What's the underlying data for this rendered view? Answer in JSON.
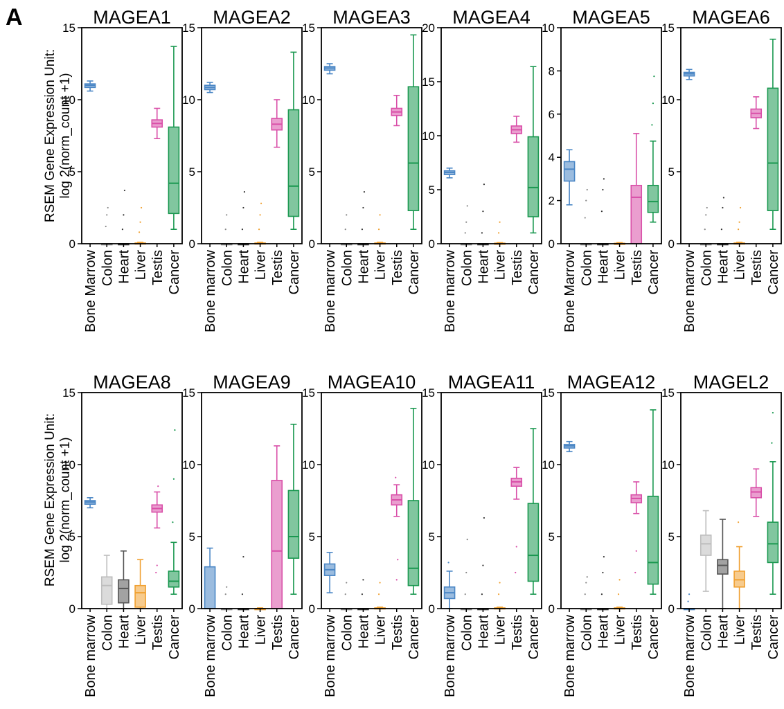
{
  "panel_letter": "A",
  "ylabel_line1": "RSEM Gene Expression Unit:",
  "ylabel_line2": "log 2(norm_count +1)",
  "chart_data": [
    {
      "type": "box",
      "title": "MAGEA1",
      "ylim": [
        0,
        15
      ],
      "yticks": [
        0,
        5,
        10,
        15
      ],
      "categories": [
        "Bone Marrow",
        "Colon",
        "Heart",
        "Liver",
        "Testis",
        "Cancer"
      ],
      "boxes": [
        {
          "min": 10.6,
          "q1": 10.85,
          "median": 11.0,
          "q3": 11.1,
          "max": 11.3,
          "outliers": [],
          "color": "#4a86c5"
        },
        {
          "min": 0,
          "q1": 0,
          "median": 0,
          "q3": 0,
          "max": 0,
          "outliers": [
            1.2,
            2.0,
            2.5
          ],
          "color": "#888888"
        },
        {
          "min": 0,
          "q1": 0,
          "median": 0,
          "q3": 0,
          "max": 0,
          "outliers": [
            1.0,
            2.0,
            3.7
          ],
          "color": "#333333"
        },
        {
          "min": 0,
          "q1": 0,
          "median": 0,
          "q3": 0.05,
          "max": 0.1,
          "outliers": [
            0.8,
            1.5,
            2.5
          ],
          "color": "#f0a030"
        },
        {
          "min": 7.3,
          "q1": 8.1,
          "median": 8.35,
          "q3": 8.6,
          "max": 9.4,
          "outliers": [],
          "color": "#d94fa8"
        },
        {
          "min": 1.0,
          "q1": 2.1,
          "median": 4.2,
          "q3": 8.1,
          "max": 13.7,
          "outliers": [],
          "color": "#1a9850"
        }
      ]
    },
    {
      "type": "box",
      "title": "MAGEA2",
      "ylim": [
        0,
        15
      ],
      "yticks": [
        0,
        5,
        10,
        15
      ],
      "categories": [
        "Bone marrow",
        "Colon",
        "Heart",
        "Liver",
        "Testis",
        "Cancer"
      ],
      "boxes": [
        {
          "min": 10.5,
          "q1": 10.7,
          "median": 10.85,
          "q3": 11.0,
          "max": 11.2,
          "outliers": [],
          "color": "#4a86c5"
        },
        {
          "min": 0,
          "q1": 0,
          "median": 0,
          "q3": 0,
          "max": 0,
          "outliers": [
            1.0,
            2.0
          ],
          "color": "#888888"
        },
        {
          "min": 0,
          "q1": 0,
          "median": 0,
          "q3": 0,
          "max": 0,
          "outliers": [
            1.0,
            2.5,
            3.6
          ],
          "color": "#333333"
        },
        {
          "min": 0,
          "q1": 0,
          "median": 0,
          "q3": 0.05,
          "max": 0.1,
          "outliers": [
            1.0,
            2.0,
            2.8
          ],
          "color": "#f0a030"
        },
        {
          "min": 6.7,
          "q1": 7.9,
          "median": 8.3,
          "q3": 8.7,
          "max": 10.0,
          "outliers": [],
          "color": "#d94fa8"
        },
        {
          "min": 1.0,
          "q1": 1.9,
          "median": 4.0,
          "q3": 9.3,
          "max": 13.3,
          "outliers": [],
          "color": "#1a9850"
        }
      ]
    },
    {
      "type": "box",
      "title": "MAGEA3",
      "ylim": [
        0,
        15
      ],
      "yticks": [
        0,
        5,
        10,
        15
      ],
      "categories": [
        "Bone marrow",
        "Colon",
        "Heart",
        "Liver",
        "Testis",
        "Cancer"
      ],
      "boxes": [
        {
          "min": 11.8,
          "q1": 12.05,
          "median": 12.2,
          "q3": 12.3,
          "max": 12.5,
          "outliers": [],
          "color": "#4a86c5"
        },
        {
          "min": 0,
          "q1": 0,
          "median": 0,
          "q3": 0,
          "max": 0,
          "outliers": [
            1.0,
            2.0
          ],
          "color": "#888888"
        },
        {
          "min": 0,
          "q1": 0,
          "median": 0,
          "q3": 0,
          "max": 0,
          "outliers": [
            1.0,
            2.5,
            3.6
          ],
          "color": "#333333"
        },
        {
          "min": 0,
          "q1": 0,
          "median": 0,
          "q3": 0.05,
          "max": 0.1,
          "outliers": [
            1.0,
            2.0
          ],
          "color": "#f0a030"
        },
        {
          "min": 8.2,
          "q1": 8.9,
          "median": 9.15,
          "q3": 9.4,
          "max": 10.3,
          "outliers": [],
          "color": "#d94fa8"
        },
        {
          "min": 1.0,
          "q1": 2.3,
          "median": 5.6,
          "q3": 10.9,
          "max": 14.5,
          "outliers": [],
          "color": "#1a9850"
        }
      ]
    },
    {
      "type": "box",
      "title": "MAGEA4",
      "ylim": [
        0,
        20
      ],
      "yticks": [
        0,
        5,
        10,
        15,
        20
      ],
      "categories": [
        "Bone marrow",
        "Colon",
        "Heart",
        "Liver",
        "Testis",
        "Cancer"
      ],
      "boxes": [
        {
          "min": 6.1,
          "q1": 6.4,
          "median": 6.6,
          "q3": 6.75,
          "max": 7.0,
          "outliers": [],
          "color": "#4a86c5"
        },
        {
          "min": 0,
          "q1": 0,
          "median": 0,
          "q3": 0,
          "max": 0,
          "outliers": [
            1.0,
            2.0,
            3.5
          ],
          "color": "#888888"
        },
        {
          "min": 0,
          "q1": 0,
          "median": 0,
          "q3": 0,
          "max": 0,
          "outliers": [
            1.0,
            3.0,
            5.5
          ],
          "color": "#333333"
        },
        {
          "min": 0,
          "q1": 0,
          "median": 0,
          "q3": 0.05,
          "max": 0.1,
          "outliers": [
            1.0,
            2.0
          ],
          "color": "#f0a030"
        },
        {
          "min": 9.4,
          "q1": 10.2,
          "median": 10.55,
          "q3": 10.9,
          "max": 11.8,
          "outliers": [],
          "color": "#d94fa8"
        },
        {
          "min": 1.0,
          "q1": 2.5,
          "median": 5.2,
          "q3": 9.9,
          "max": 16.4,
          "outliers": [],
          "color": "#1a9850"
        }
      ]
    },
    {
      "type": "box",
      "title": "MAGEA5",
      "ylim": [
        0,
        10
      ],
      "yticks": [
        0,
        2,
        4,
        6,
        8,
        10
      ],
      "categories": [
        "Bone Marrow",
        "Colon",
        "Heart",
        "Liver",
        "Testis",
        "Cancer"
      ],
      "boxes": [
        {
          "min": 1.8,
          "q1": 2.9,
          "median": 3.45,
          "q3": 3.8,
          "max": 4.35,
          "outliers": [],
          "color": "#4a86c5"
        },
        {
          "min": 0,
          "q1": 0,
          "median": 0,
          "q3": 0,
          "max": 0,
          "outliers": [
            1.2,
            2.0,
            2.5
          ],
          "color": "#888888"
        },
        {
          "min": 0,
          "q1": 0,
          "median": 0,
          "q3": 0,
          "max": 0,
          "outliers": [
            1.5,
            2.5,
            3.0
          ],
          "color": "#333333"
        },
        {
          "min": 0,
          "q1": 0,
          "median": 0,
          "q3": 0.02,
          "max": 0.05,
          "outliers": [],
          "color": "#f0a030"
        },
        {
          "min": 0,
          "q1": 0,
          "median": 2.15,
          "q3": 2.7,
          "max": 5.1,
          "outliers": [],
          "color": "#d94fa8"
        },
        {
          "min": 1.0,
          "q1": 1.45,
          "median": 1.95,
          "q3": 2.7,
          "max": 4.75,
          "outliers": [
            5.5,
            6.5,
            7.75
          ],
          "color": "#1a9850"
        }
      ]
    },
    {
      "type": "box",
      "title": "MAGEA6",
      "ylim": [
        0,
        15
      ],
      "yticks": [
        0,
        5,
        10,
        15
      ],
      "categories": [
        "Bone marrow",
        "Colon",
        "Heart",
        "Liver",
        "Testis",
        "Cancer"
      ],
      "boxes": [
        {
          "min": 11.4,
          "q1": 11.65,
          "median": 11.8,
          "q3": 11.9,
          "max": 12.1,
          "outliers": [],
          "color": "#4a86c5"
        },
        {
          "min": 0,
          "q1": 0,
          "median": 0,
          "q3": 0,
          "max": 0,
          "outliers": [
            1.0,
            2.0,
            2.5
          ],
          "color": "#888888"
        },
        {
          "min": 0,
          "q1": 0,
          "median": 0,
          "q3": 0,
          "max": 0,
          "outliers": [
            1.0,
            2.5,
            3.2
          ],
          "color": "#333333"
        },
        {
          "min": 0,
          "q1": 0,
          "median": 0,
          "q3": 0.05,
          "max": 0.1,
          "outliers": [
            1.0,
            1.5,
            2.5
          ],
          "color": "#f0a030"
        },
        {
          "min": 8.0,
          "q1": 8.75,
          "median": 9.05,
          "q3": 9.35,
          "max": 10.2,
          "outliers": [],
          "color": "#d94fa8"
        },
        {
          "min": 1.0,
          "q1": 2.3,
          "median": 5.6,
          "q3": 10.8,
          "max": 14.2,
          "outliers": [],
          "color": "#1a9850"
        }
      ]
    },
    {
      "type": "box",
      "title": "MAGEA8",
      "ylim": [
        0,
        15
      ],
      "yticks": [
        0,
        5,
        10,
        15
      ],
      "categories": [
        "Bone marrow",
        "Colon",
        "Heart",
        "Liver",
        "Testis",
        "Cancer"
      ],
      "boxes": [
        {
          "min": 7.0,
          "q1": 7.25,
          "median": 7.4,
          "q3": 7.5,
          "max": 7.7,
          "outliers": [],
          "color": "#4a86c5"
        },
        {
          "min": 0,
          "q1": 0.3,
          "median": 1.6,
          "q3": 2.2,
          "max": 3.7,
          "outliers": [],
          "color": "#bdbdbd"
        },
        {
          "min": 0,
          "q1": 0.4,
          "median": 1.4,
          "q3": 2.0,
          "max": 4.0,
          "outliers": [],
          "color": "#555555"
        },
        {
          "min": 0,
          "q1": 0.1,
          "median": 1.1,
          "q3": 1.6,
          "max": 3.4,
          "outliers": [],
          "color": "#f0a030"
        },
        {
          "min": 5.6,
          "q1": 6.7,
          "median": 6.95,
          "q3": 7.2,
          "max": 8.1,
          "outliers": [
            2.5,
            3.0,
            8.5
          ],
          "color": "#d94fa8"
        },
        {
          "min": 1.0,
          "q1": 1.5,
          "median": 1.9,
          "q3": 2.6,
          "max": 4.6,
          "outliers": [
            6.0,
            9.0,
            12.4
          ],
          "color": "#1a9850"
        }
      ]
    },
    {
      "type": "box",
      "title": "MAGEA9",
      "ylim": [
        0,
        15
      ],
      "yticks": [
        0,
        5,
        10,
        15
      ],
      "categories": [
        "Bone marrow",
        "Colon",
        "Heart",
        "Liver",
        "Testis",
        "Cancer"
      ],
      "boxes": [
        {
          "min": 0,
          "q1": 0,
          "median": 0,
          "q3": 2.9,
          "max": 4.2,
          "outliers": [],
          "color": "#4a86c5"
        },
        {
          "min": 0,
          "q1": 0,
          "median": 0,
          "q3": 0,
          "max": 0,
          "outliers": [
            1.0,
            1.5
          ],
          "color": "#888888"
        },
        {
          "min": 0,
          "q1": 0,
          "median": 0,
          "q3": 0,
          "max": 0,
          "outliers": [
            1.0,
            3.6
          ],
          "color": "#333333"
        },
        {
          "min": 0,
          "q1": 0,
          "median": 0,
          "q3": 0,
          "max": 0.05,
          "outliers": [],
          "color": "#f0a030"
        },
        {
          "min": 0,
          "q1": 0,
          "median": 4.0,
          "q3": 8.9,
          "max": 11.3,
          "outliers": [],
          "color": "#d94fa8"
        },
        {
          "min": 1.0,
          "q1": 3.5,
          "median": 5.0,
          "q3": 8.2,
          "max": 12.8,
          "outliers": [],
          "color": "#1a9850"
        }
      ]
    },
    {
      "type": "box",
      "title": "MAGEA10",
      "ylim": [
        0,
        15
      ],
      "yticks": [
        0,
        5,
        10,
        15
      ],
      "categories": [
        "Bone marrow",
        "Colon",
        "Heart",
        "Liver",
        "Testis",
        "Cancer"
      ],
      "boxes": [
        {
          "min": 1.1,
          "q1": 2.3,
          "median": 2.7,
          "q3": 3.1,
          "max": 3.9,
          "outliers": [],
          "color": "#4a86c5"
        },
        {
          "min": 0,
          "q1": 0,
          "median": 0,
          "q3": 0,
          "max": 0,
          "outliers": [
            1.0,
            1.8
          ],
          "color": "#888888"
        },
        {
          "min": 0,
          "q1": 0,
          "median": 0,
          "q3": 0,
          "max": 0,
          "outliers": [
            1.0,
            2.0
          ],
          "color": "#333333"
        },
        {
          "min": 0,
          "q1": 0,
          "median": 0,
          "q3": 0.05,
          "max": 0.1,
          "outliers": [
            1.0,
            1.8
          ],
          "color": "#f0a030"
        },
        {
          "min": 6.4,
          "q1": 7.2,
          "median": 7.55,
          "q3": 7.9,
          "max": 8.6,
          "outliers": [
            9.1,
            2.0,
            3.4
          ],
          "color": "#d94fa8"
        },
        {
          "min": 1.0,
          "q1": 1.6,
          "median": 2.8,
          "q3": 7.5,
          "max": 13.9,
          "outliers": [],
          "color": "#1a9850"
        }
      ]
    },
    {
      "type": "box",
      "title": "MAGEA11",
      "ylim": [
        0,
        15
      ],
      "yticks": [
        0,
        5,
        10,
        15
      ],
      "categories": [
        "Bone marrow",
        "Colon",
        "Heart",
        "Liver",
        "Testis",
        "Cancer"
      ],
      "boxes": [
        {
          "min": 0,
          "q1": 0.7,
          "median": 1.1,
          "q3": 1.5,
          "max": 2.6,
          "outliers": [
            3.2
          ],
          "color": "#4a86c5"
        },
        {
          "min": 0,
          "q1": 0,
          "median": 0,
          "q3": 0,
          "max": 0,
          "outliers": [
            1.0,
            2.5,
            4.8
          ],
          "color": "#888888"
        },
        {
          "min": 0,
          "q1": 0,
          "median": 0,
          "q3": 0,
          "max": 0,
          "outliers": [
            1.0,
            3.0,
            6.3
          ],
          "color": "#333333"
        },
        {
          "min": 0,
          "q1": 0,
          "median": 0,
          "q3": 0.05,
          "max": 0.1,
          "outliers": [
            1.0,
            1.8
          ],
          "color": "#f0a030"
        },
        {
          "min": 7.6,
          "q1": 8.5,
          "median": 8.8,
          "q3": 9.05,
          "max": 9.8,
          "outliers": [
            2.5,
            4.3
          ],
          "color": "#d94fa8"
        },
        {
          "min": 1.0,
          "q1": 1.9,
          "median": 3.7,
          "q3": 7.3,
          "max": 12.5,
          "outliers": [],
          "color": "#1a9850"
        }
      ]
    },
    {
      "type": "box",
      "title": "MAGEA12",
      "ylim": [
        0,
        15
      ],
      "yticks": [
        0,
        5,
        10,
        15
      ],
      "categories": [
        "Bone marrow",
        "Colon",
        "Heart",
        "Liver",
        "Testis",
        "Cancer"
      ],
      "boxes": [
        {
          "min": 10.9,
          "q1": 11.15,
          "median": 11.3,
          "q3": 11.4,
          "max": 11.6,
          "outliers": [],
          "color": "#4a86c5"
        },
        {
          "min": 0,
          "q1": 0,
          "median": 0,
          "q3": 0,
          "max": 0,
          "outliers": [
            1.0,
            1.8,
            2.2
          ],
          "color": "#888888"
        },
        {
          "min": 0,
          "q1": 0,
          "median": 0,
          "q3": 0,
          "max": 0,
          "outliers": [
            1.0,
            2.5,
            3.6
          ],
          "color": "#333333"
        },
        {
          "min": 0,
          "q1": 0,
          "median": 0,
          "q3": 0.05,
          "max": 0.1,
          "outliers": [
            1.0,
            2.0
          ],
          "color": "#f0a030"
        },
        {
          "min": 6.6,
          "q1": 7.35,
          "median": 7.65,
          "q3": 7.9,
          "max": 8.8,
          "outliers": [
            2.5,
            4.0
          ],
          "color": "#d94fa8"
        },
        {
          "min": 1.0,
          "q1": 1.7,
          "median": 3.2,
          "q3": 7.8,
          "max": 13.8,
          "outliers": [],
          "color": "#1a9850"
        }
      ]
    },
    {
      "type": "box",
      "title": "MAGEL2",
      "ylim": [
        0,
        15
      ],
      "yticks": [
        0,
        5,
        10,
        15
      ],
      "categories": [
        "Bone marrow",
        "Colon",
        "Heart",
        "Liver",
        "Testis",
        "Cancer"
      ],
      "boxes": [
        {
          "min": 0,
          "q1": 0,
          "median": 0,
          "q3": 0,
          "max": 0,
          "outliers": [
            0.5,
            1.0
          ],
          "color": "#4a86c5"
        },
        {
          "min": 1.2,
          "q1": 3.7,
          "median": 4.5,
          "q3": 5.1,
          "max": 6.8,
          "outliers": [],
          "color": "#bdbdbd"
        },
        {
          "min": 0,
          "q1": 2.4,
          "median": 3.0,
          "q3": 3.4,
          "max": 6.2,
          "outliers": [],
          "color": "#555555"
        },
        {
          "min": 0,
          "q1": 1.5,
          "median": 2.0,
          "q3": 2.6,
          "max": 4.3,
          "outliers": [
            6.0
          ],
          "color": "#f0a030"
        },
        {
          "min": 6.4,
          "q1": 7.7,
          "median": 8.1,
          "q3": 8.4,
          "max": 9.7,
          "outliers": [],
          "color": "#d94fa8"
        },
        {
          "min": 1.0,
          "q1": 3.2,
          "median": 4.5,
          "q3": 6.0,
          "max": 10.2,
          "outliers": [
            11.5,
            13.6
          ],
          "color": "#1a9850"
        }
      ]
    }
  ]
}
